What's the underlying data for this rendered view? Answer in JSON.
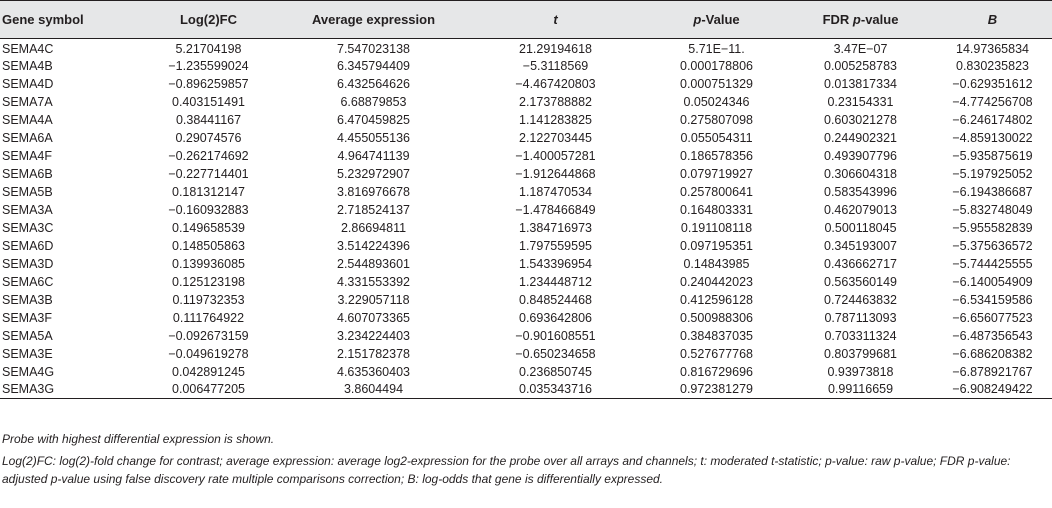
{
  "table": {
    "headers": [
      {
        "label": "Gene symbol",
        "prefix": "",
        "emph": "",
        "suffix": ""
      },
      {
        "label": "Log(2)FC",
        "prefix": "",
        "emph": "",
        "suffix": ""
      },
      {
        "label": "Average expression",
        "prefix": "",
        "emph": "",
        "suffix": ""
      },
      {
        "label": "t",
        "prefix": "",
        "emph": "t",
        "suffix": ""
      },
      {
        "label": "p-Value",
        "prefix": "",
        "emph": "p",
        "suffix": "-Value"
      },
      {
        "label": "FDR p-value",
        "prefix": "FDR ",
        "emph": "p",
        "suffix": "-value"
      },
      {
        "label": "B",
        "prefix": "",
        "emph": "B",
        "suffix": ""
      }
    ],
    "rows": [
      [
        "SEMA4C",
        "5.21704198",
        "7.547023138",
        "21.29194618",
        "5.71E−11.",
        "3.47E−07",
        "14.97365834"
      ],
      [
        "SEMA4B",
        "−1.235599024",
        "6.345794409",
        "−5.3118569",
        "0.000178806",
        "0.005258783",
        "0.830235823"
      ],
      [
        "SEMA4D",
        "−0.896259857",
        "6.432564626",
        "−4.467420803",
        "0.000751329",
        "0.013817334",
        "−0.629351612"
      ],
      [
        "SEMA7A",
        "0.403151491",
        "6.68879853",
        "2.173788882",
        "0.05024346",
        "0.23154331",
        "−4.774256708"
      ],
      [
        "SEMA4A",
        "0.38441167",
        "6.470459825",
        "1.141283825",
        "0.275807098",
        "0.603021278",
        "−6.246174802"
      ],
      [
        "SEMA6A",
        "0.29074576",
        "4.455055136",
        "2.122703445",
        "0.055054311",
        "0.244902321",
        "−4.859130022"
      ],
      [
        "SEMA4F",
        "−0.262174692",
        "4.964741139",
        "−1.400057281",
        "0.186578356",
        "0.493907796",
        "−5.935875619"
      ],
      [
        "SEMA6B",
        "−0.227714401",
        "5.232972907",
        "−1.912644868",
        "0.079719927",
        "0.306604318",
        "−5.197925052"
      ],
      [
        "SEMA5B",
        "0.181312147",
        "3.816976678",
        "1.187470534",
        "0.257800641",
        "0.583543996",
        "−6.194386687"
      ],
      [
        "SEMA3A",
        "−0.160932883",
        "2.718524137",
        "−1.478466849",
        "0.164803331",
        "0.462079013",
        "−5.832748049"
      ],
      [
        "SEMA3C",
        "0.149658539",
        "2.86694811",
        "1.384716973",
        "0.191108118",
        "0.500118045",
        "−5.955582839"
      ],
      [
        "SEMA6D",
        "0.148505863",
        "3.514224396",
        "1.797559595",
        "0.097195351",
        "0.345193007",
        "−5.375636572"
      ],
      [
        "SEMA3D",
        "0.139936085",
        "2.544893601",
        "1.543396954",
        "0.14843985",
        "0.436662717",
        "−5.744425555"
      ],
      [
        "SEMA6C",
        "0.125123198",
        "4.331553392",
        "1.234448712",
        "0.240442023",
        "0.563560149",
        "−6.140054909"
      ],
      [
        "SEMA3B",
        "0.119732353",
        "3.229057118",
        "0.848524468",
        "0.412596128",
        "0.724463832",
        "−6.534159586"
      ],
      [
        "SEMA3F",
        "0.111764922",
        "4.607073365",
        "0.693642806",
        "0.500988306",
        "0.787113093",
        "−6.656077523"
      ],
      [
        "SEMA5A",
        "−0.092673159",
        "3.234224403",
        "−0.901608551",
        "0.384837035",
        "0.703311324",
        "−6.487356543"
      ],
      [
        "SEMA3E",
        "−0.049619278",
        "2.151782378",
        "−0.650234658",
        "0.527677768",
        "0.803799681",
        "−6.686208382"
      ],
      [
        "SEMA4G",
        "0.042891245",
        "4.635360403",
        "0.236850745",
        "0.816729696",
        "0.93973818",
        "−6.878921767"
      ],
      [
        "SEMA3G",
        "0.006477205",
        "3.8604494",
        "0.035343716",
        "0.972381279",
        "0.99116659",
        "−6.908249422"
      ]
    ]
  },
  "notes": {
    "note1": "Probe with highest differential expression is shown.",
    "note2": "Log(2)FC: log(2)-fold change for contrast; average expression: average log2-expression for the probe over all arrays and channels; t: moderated t-statistic; p-value: raw p-value; FDR p-value: adjusted p-value using false discovery rate multiple comparisons correction; B: log-odds that gene is differentially expressed."
  },
  "colors": {
    "header_background": "#e6e7e8",
    "text": "#231f20",
    "rule": "#231f20"
  }
}
